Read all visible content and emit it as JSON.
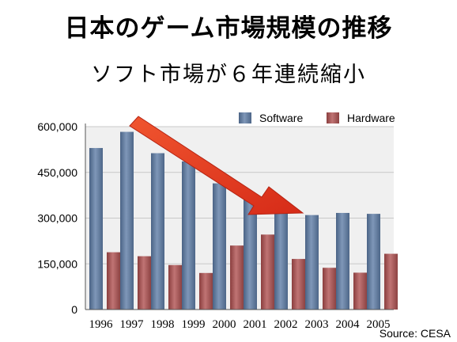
{
  "title": "日本のゲーム市場規模の推移",
  "subtitle": "ソフト市場が６年連続縮小",
  "source": "Source: CESA",
  "colors": {
    "software": "#5a7394",
    "hardware": "#9c4f4f",
    "arrow": "#e23c22",
    "grid": "#c8c8c8",
    "plot_bg": "#f0f0f0"
  },
  "chart_data": {
    "type": "bar",
    "categories": [
      "1996",
      "1997",
      "1998",
      "1999",
      "2000",
      "2001",
      "2002",
      "2003",
      "2004",
      "2005"
    ],
    "series": [
      {
        "name": "Software",
        "values": [
          530000,
          583000,
          513000,
          486000,
          414000,
          370000,
          338000,
          310000,
          317000,
          314000
        ]
      },
      {
        "name": "Hardware",
        "values": [
          188000,
          175000,
          146000,
          120000,
          210000,
          246000,
          166000,
          137000,
          121000,
          183000
        ]
      }
    ],
    "ylim": [
      0,
      600000
    ],
    "yticks": [
      0,
      150000,
      300000,
      450000,
      600000
    ],
    "ytick_labels": [
      "0",
      "150,000",
      "300,000",
      "450,000",
      "600,000"
    ],
    "grid": true,
    "legend": "top-right",
    "annotation": "arrow from 1997 to 2003"
  }
}
